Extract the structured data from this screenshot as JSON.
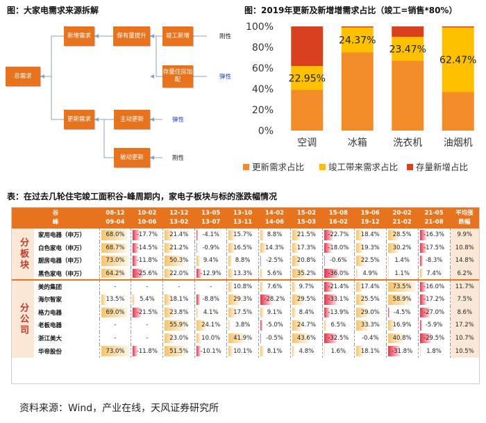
{
  "left_panel": {
    "title": "图：大家电需求来源拆解",
    "boxes": {
      "total": "总需求",
      "new_demand": "新增需求",
      "ownership": "保有量提升",
      "completion": "竣工新增",
      "stock": "存量住房加配",
      "replacement": "更新需求",
      "active": "主动更新",
      "passive": "被动更新"
    },
    "tags": {
      "completion": "刚性",
      "stock": "弹性",
      "active": "弹性",
      "passive": "刚性"
    }
  },
  "right_panel": {
    "title": "图：2019年更新及新增增需求占比（竣工=销售*80%）"
  },
  "table_panel": {
    "title": "表：在过去几轮住宅竣工面积谷-峰周期内，家电子板块与标的涨跌幅情况",
    "header_first": [
      "谷",
      "峰"
    ],
    "periods": [
      [
        "08-12",
        "09-04"
      ],
      [
        "10-02",
        "10-06"
      ],
      [
        "12-12",
        "13-02"
      ],
      [
        "13-05",
        "13-07"
      ],
      [
        "13-10",
        "13-11"
      ],
      [
        "14-02",
        "14-06"
      ],
      [
        "15-02",
        "15-03"
      ],
      [
        "15-08",
        "16-02"
      ],
      [
        "19-06",
        "19-12"
      ],
      [
        "20-02",
        "21-02"
      ],
      [
        "21-05",
        "21-08"
      ]
    ],
    "avg_header": [
      "平均涨",
      "跌幅"
    ],
    "groups": [
      {
        "label": "分板块",
        "rows": [
          {
            "name": "家用电器（申万）",
            "values": [
              "68.0%",
              "-17.7%",
              "21.4%",
              "-4.1%",
              "15.7%",
              "8.8%",
              "21.5%",
              "-22.7%",
              "18.4%",
              "28.5%",
              "-16.3%"
            ],
            "avg": "9.9%"
          },
          {
            "name": "白色家电（申万）",
            "values": [
              "68.7%",
              "-14.5%",
              "21.2%",
              "-0.9%",
              "16.5%",
              "14.3%",
              "17.3%",
              "-18.0%",
              "19.3%",
              "30.2%",
              "-17.5%"
            ],
            "avg": "10.8%"
          },
          {
            "name": "厨房电器（申万）",
            "values": [
              "73.0%",
              "-11.8%",
              "50.3%",
              "9.4%",
              "8.8%",
              "-2.5%",
              "20.8%",
              "-0.6%",
              "22.5%",
              "1.4%",
              "-8.3%"
            ],
            "avg": "14.8%"
          },
          {
            "name": "黑色家电（申万）",
            "values": [
              "64.2%",
              "-25.6%",
              "22.0%",
              "-12.9%",
              "13.3%",
              "5.6%",
              "35.2%",
              "-36.0%",
              "4.9%",
              "1.1%",
              "7.4%"
            ],
            "avg": "6.2%"
          }
        ]
      },
      {
        "label": "分公司",
        "rows": [
          {
            "name": "美的集团",
            "values": [
              "-",
              "-",
              "-",
              "-",
              "10.8%",
              "7.6%",
              "9.7%",
              "-21.4%",
              "17.4%",
              "73.5%",
              "-16.0%"
            ],
            "avg": "11.7%"
          },
          {
            "name": "海尔智家",
            "values": [
              "13.5%",
              "5.4%",
              "18.1%",
              "-8.8%",
              "29.3%",
              "-28.2%",
              "29.5%",
              "-33.1%",
              "25.5%",
              "58.9%",
              "-17.2%"
            ],
            "avg": "7.5%"
          },
          {
            "name": "格力电器",
            "values": [
              "69.0%",
              "-21.5%",
              "23.8%",
              "4.1%",
              "17.5%",
              "9.1%",
              "8.4%",
              "-13.9%",
              "29.0%",
              "-4.5%",
              "-27.0%"
            ],
            "avg": "8.6%"
          },
          {
            "name": "老板电器",
            "values": [
              "-",
              "-",
              "55.9%",
              "24.1%",
              "3.8%",
              "-5.0%",
              "24.7%",
              "6.5%",
              "33.3%",
              "16.9%",
              "-5.9%"
            ],
            "avg": "17.2%"
          },
          {
            "name": "浙江美大",
            "values": [
              "-",
              "-",
              "23.0%",
              "10.0%",
              "41.9%",
              "-0.5%",
              "43.6%",
              "-32.5%",
              "-0.4%",
              "40.8%",
              "-29.5%"
            ],
            "avg": "10.7%"
          },
          {
            "name": "华帝股份",
            "values": [
              "73.0%",
              "-11.8%",
              "51.5%",
              "-10.1%",
              "10.1%",
              "8.1%",
              "4.8%",
              "1.6%",
              "18.1%",
              "-31.8%",
              "1.8%"
            ],
            "avg": "10.5%"
          }
        ]
      }
    ]
  },
  "source": "资料来源：Wind，产业在线，天风证券研究所",
  "colors": {
    "accent": "#e8731d",
    "series_update": "#f28c28",
    "series_completion": "#ffc000",
    "series_stock": "#d9411e",
    "positive_bar": "#f7c36b",
    "negative_bar": "#e8334a",
    "elastic_tag": "#1f3fd1",
    "rigid_tag": "#222222"
  },
  "chart_data": {
    "type": "bar",
    "stacked": true,
    "title": "图：2019年更新及新增增需求占比（竣工=销售*80%）",
    "categories": [
      "空调",
      "冰箱",
      "洗衣机",
      "油烟机"
    ],
    "series": [
      {
        "name": "更新需求占比",
        "values": [
          39,
          75,
          67,
          37
        ]
      },
      {
        "name": "竣工带来需求占比",
        "values": [
          23,
          24,
          23,
          62
        ]
      },
      {
        "name": "存量新增占比",
        "values": [
          38,
          1,
          10,
          1
        ]
      }
    ],
    "data_labels": [
      {
        "category": "空调",
        "series": "竣工带来需求占比",
        "text": "22.95%"
      },
      {
        "category": "冰箱",
        "series": "竣工带来需求占比",
        "text": "24.37%"
      },
      {
        "category": "洗衣机",
        "series": "竣工带来需求占比",
        "text": "23.47%"
      },
      {
        "category": "油烟机",
        "series": "竣工带来需求占比",
        "text": "62.47%"
      }
    ],
    "y_ticks": [
      "0%",
      "20%",
      "40%",
      "60%",
      "80%",
      "100%"
    ],
    "ylim": [
      0,
      100
    ],
    "legend": "bottom",
    "grid": false
  }
}
